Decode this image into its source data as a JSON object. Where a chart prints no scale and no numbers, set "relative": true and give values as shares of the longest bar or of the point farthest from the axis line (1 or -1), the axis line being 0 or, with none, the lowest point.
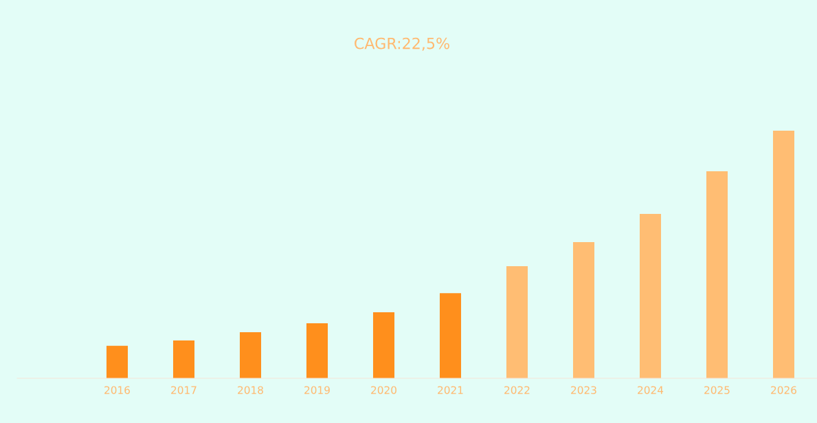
{
  "chart_data": {
    "type": "bar",
    "title": "CAGR:22,5%",
    "relative": true,
    "categories": [
      null,
      "2016",
      "2017",
      "2018",
      "2019",
      "2020",
      "2021",
      "2022",
      "2023",
      "2024",
      "2025",
      "2026"
    ],
    "values": [
      null,
      0.131,
      0.153,
      0.186,
      0.222,
      0.267,
      0.344,
      0.453,
      0.55,
      0.664,
      0.836,
      1
    ],
    "colors": [
      "#ff8f1c",
      "#ff8f1c",
      "#ff8f1c",
      "#ff8f1c",
      "#ff8f1c",
      "#ff8f1c",
      "#ff8f1c",
      "#ffbd73",
      "#ffbd73",
      "#ffbd73",
      "#ffbd73",
      "#ffbd73"
    ],
    "grid": false,
    "legend": false
  }
}
